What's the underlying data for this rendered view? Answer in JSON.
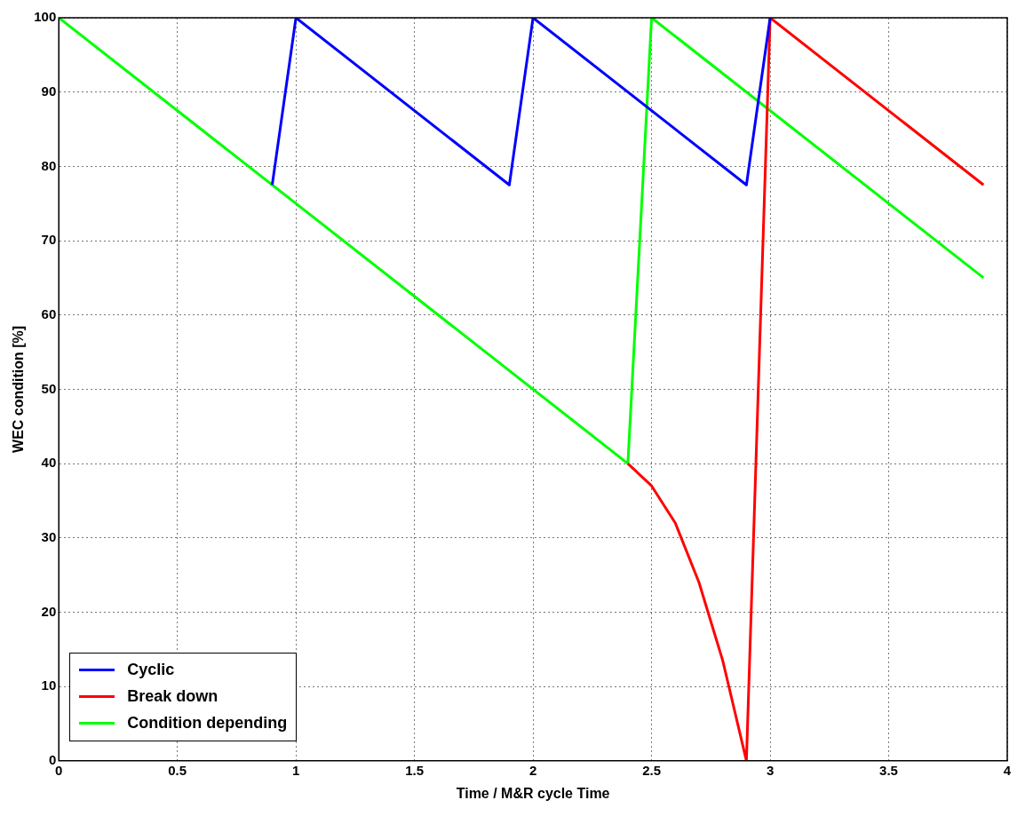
{
  "chart_data": {
    "type": "line",
    "xlabel": "Time / M&R cycle Time",
    "ylabel": "WEC condition [%]",
    "xlim": [
      0,
      4
    ],
    "xticks": [
      0,
      0.5,
      1,
      1.5,
      2,
      2.5,
      3,
      3.5,
      4
    ],
    "ylim": [
      0,
      100
    ],
    "yticks": [
      0,
      10,
      20,
      30,
      40,
      50,
      60,
      70,
      80,
      90,
      100
    ],
    "grid": true,
    "legend": "bottom left",
    "line_style": "solid",
    "marker": "none",
    "series": [
      {
        "name": "Cyclic",
        "color": "#0000ff",
        "x": [
          0.9,
          1,
          1.9,
          2,
          2.9,
          3
        ],
        "values": [
          77.5,
          100,
          77.5,
          100,
          77.5,
          100
        ]
      },
      {
        "name": "Break down",
        "color": "#ff0000",
        "x": [
          2.4,
          2.5,
          2.6,
          2.7,
          2.8,
          2.9,
          3,
          3.9
        ],
        "values": [
          40,
          37,
          32,
          24,
          13.5,
          0,
          100,
          77.5
        ]
      },
      {
        "name": "Condition depending",
        "color": "#00ff00",
        "x": [
          0,
          2.4,
          2.5,
          3.9
        ],
        "values": [
          100,
          40,
          100,
          65
        ]
      }
    ]
  }
}
